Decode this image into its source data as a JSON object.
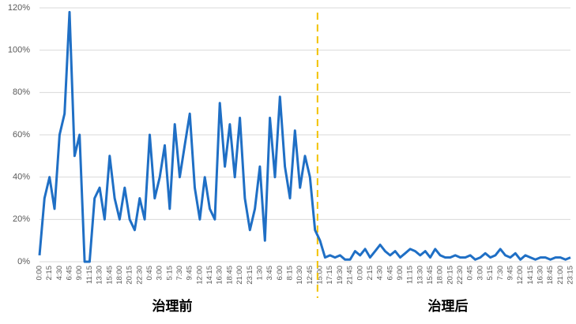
{
  "chart_data": {
    "type": "line",
    "categories": [
      "0:00",
      null,
      "2:15",
      null,
      "4:30",
      null,
      "6:45",
      null,
      "9:00",
      null,
      "11:15",
      null,
      "13:30",
      null,
      "15:45",
      null,
      "18:00",
      null,
      "20:15",
      null,
      "22:30",
      null,
      "0:45",
      null,
      "3:00",
      null,
      "5:15",
      null,
      "7:30",
      null,
      "9:45",
      null,
      "12:00",
      null,
      "14:15",
      null,
      "16:30",
      null,
      "18:45",
      null,
      "21:00",
      null,
      "23:15",
      null,
      "1:30",
      null,
      "3:45",
      null,
      "6:00",
      null,
      "8:15",
      null,
      "10:30",
      null,
      "12:45",
      null,
      "15:00",
      null,
      "17:15",
      null,
      "19:30",
      null,
      "21:45",
      null,
      "0:00",
      null,
      "2:15",
      null,
      "4:30",
      null,
      "6:45",
      null,
      "9:00",
      null,
      "11:15",
      null,
      "13:30",
      null,
      "15:45",
      null,
      "18:00",
      null,
      "20:15",
      null,
      "22:30",
      null,
      "0:45",
      null,
      "3:00",
      null,
      "5:15",
      null,
      "7:30",
      null,
      "9:45",
      null,
      "12:00",
      null,
      "14:15",
      null,
      "16:30",
      null,
      "18:45",
      null,
      "21:00",
      null,
      "23:15"
    ],
    "series": [
      {
        "color": "#1f6fc5",
        "values": [
          3,
          30,
          40,
          25,
          60,
          70,
          118,
          50,
          60,
          0,
          0,
          30,
          35,
          20,
          50,
          30,
          20,
          35,
          20,
          15,
          30,
          20,
          60,
          30,
          40,
          55,
          25,
          65,
          40,
          55,
          70,
          35,
          20,
          40,
          25,
          20,
          75,
          45,
          65,
          40,
          68,
          30,
          15,
          25,
          45,
          10,
          68,
          40,
          78,
          45,
          30,
          62,
          35,
          50,
          40,
          15,
          10,
          2,
          3,
          2,
          3,
          1,
          1,
          5,
          3,
          6,
          2,
          5,
          8,
          5,
          3,
          5,
          2,
          4,
          6,
          5,
          3,
          5,
          2,
          6,
          3,
          2,
          2,
          3,
          2,
          2,
          3,
          1,
          2,
          4,
          2,
          3,
          6,
          3,
          2,
          4,
          1,
          3,
          2,
          1,
          2,
          2,
          1,
          2,
          2,
          1,
          2
        ]
      }
    ],
    "ylim": [
      0,
      120
    ],
    "yticks": [
      {
        "value": 0,
        "label": "0%"
      },
      {
        "value": 20,
        "label": "20%"
      },
      {
        "value": 40,
        "label": "40%"
      },
      {
        "value": 60,
        "label": "60%"
      },
      {
        "value": 80,
        "label": "80%"
      },
      {
        "value": 100,
        "label": "100%"
      },
      {
        "value": 120,
        "label": "120%"
      }
    ],
    "grid": true,
    "divider_color": "#f2c200",
    "annotations": [
      "治理前",
      "治理后"
    ]
  }
}
